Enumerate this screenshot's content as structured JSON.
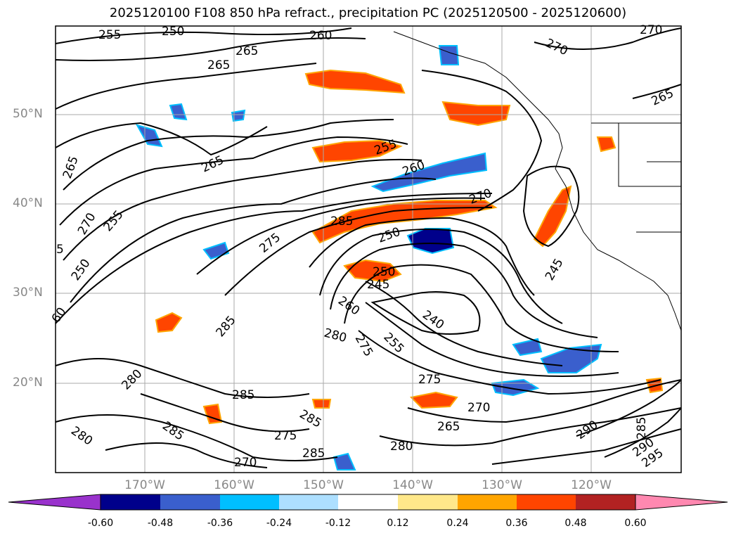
{
  "title": "2025120100 F108 850 hPa refract., precipitation PC (2025120500 - 2025120600)",
  "lat_labels": [
    "50°N",
    "40°N",
    "30°N",
    "20°N"
  ],
  "lon_labels": [
    "170°W",
    "160°W",
    "150°W",
    "140°W",
    "130°W",
    "120°W"
  ],
  "colorbar": {
    "ticks": [
      "-0.60",
      "-0.48",
      "-0.36",
      "-0.24",
      "-0.12",
      "0.12",
      "0.24",
      "0.36",
      "0.48",
      "0.60"
    ],
    "colors": [
      "#9932CC",
      "#00008B",
      "#3A5FCD",
      "#00BFFF",
      "#ADDFFF",
      "#FFFFFF",
      "#FFE88A",
      "#FFA500",
      "#FF4500",
      "#B22222",
      "#FF88B0"
    ]
  },
  "contour_labels": [
    "255",
    "250",
    "260",
    "265",
    "270",
    "270",
    "265",
    "265",
    "265",
    "270",
    "255",
    "250",
    "60",
    "260",
    "255",
    "275",
    "265",
    "285",
    "270",
    "250",
    "250",
    "245",
    "245",
    "260",
    "240",
    "280",
    "275",
    "255",
    "285",
    "280",
    "275",
    "270",
    "265",
    "285",
    "285",
    "275",
    "280",
    "285",
    "270",
    "280",
    "285",
    "290",
    "285",
    "290",
    "295",
    "5"
  ]
}
